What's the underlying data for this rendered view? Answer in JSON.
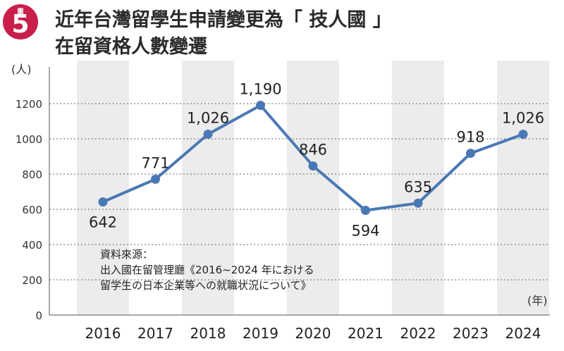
{
  "badge": {
    "label": "圖",
    "number": "5"
  },
  "title": {
    "line1": "近年台灣留學生申請變更為「 技人國 」",
    "line2": "在留資格人數變遷"
  },
  "source": {
    "heading": "資料來源：",
    "line1": "出入國在留管理廳《2016~2024 年における",
    "line2": "留学生の日本企業等への就職状況について》"
  },
  "colors": {
    "line": "#4a78b5",
    "badge": "#c8204a",
    "band": "#ececec"
  },
  "chart_data": {
    "type": "line",
    "y_unit": "(人)",
    "x_unit": "(年)",
    "categories": [
      "2016",
      "2017",
      "2018",
      "2019",
      "2020",
      "2021",
      "2022",
      "2023",
      "2024"
    ],
    "values": [
      642,
      771,
      1026,
      1190,
      846,
      594,
      635,
      918,
      1026
    ],
    "data_labels": [
      "642",
      "771",
      "1,026",
      "1,190",
      "846",
      "594",
      "635",
      "918",
      "1,026"
    ],
    "yticks": [
      "0",
      "200",
      "400",
      "600",
      "800",
      "1000",
      "1200"
    ],
    "ylim": [
      0,
      1200
    ],
    "grid": true,
    "legend": "none"
  }
}
